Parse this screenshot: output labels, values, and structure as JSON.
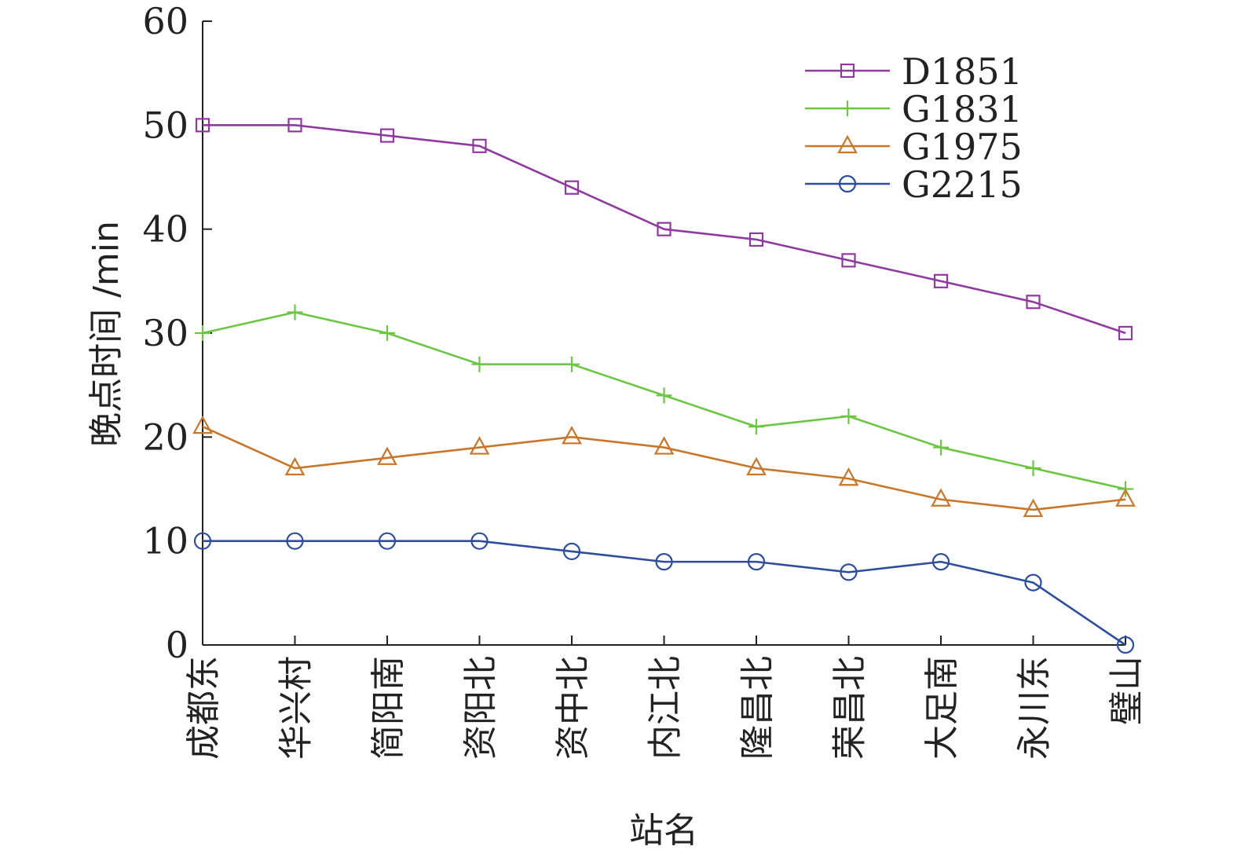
{
  "chart_data": {
    "type": "line",
    "xlabel": "站名",
    "ylabel": "晚点时间 /min",
    "ylim": [
      0,
      60
    ],
    "yticks": [
      0,
      10,
      20,
      30,
      40,
      50,
      60
    ],
    "categories": [
      "成都东",
      "华兴村",
      "简阳南",
      "资阳北",
      "资中北",
      "内江北",
      "隆昌北",
      "荣昌北",
      "大足南",
      "永川东",
      "璧山"
    ],
    "legend_position": "top-right",
    "grid": false,
    "series": [
      {
        "name": "D1851",
        "marker": "square",
        "color": "#8e3a9e",
        "values": [
          50,
          50,
          49,
          48,
          44,
          40,
          39,
          37,
          35,
          33,
          30
        ]
      },
      {
        "name": "G1831",
        "marker": "plus",
        "color": "#6cc644",
        "values": [
          30,
          32,
          30,
          27,
          27,
          24,
          21,
          22,
          19,
          17,
          15
        ]
      },
      {
        "name": "G1975",
        "marker": "triangle",
        "color": "#c8762a",
        "values": [
          21,
          17,
          18,
          19,
          20,
          19,
          17,
          16,
          14,
          13,
          14
        ]
      },
      {
        "name": "G2215",
        "marker": "circle",
        "color": "#2e4d9c",
        "values": [
          10,
          10,
          10,
          10,
          9,
          8,
          8,
          7,
          8,
          6,
          0
        ]
      }
    ]
  }
}
